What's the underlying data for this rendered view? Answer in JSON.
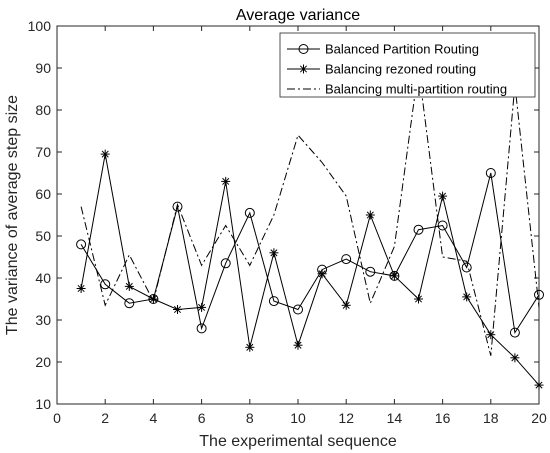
{
  "chart_data": {
    "type": "line",
    "title": "Average variance",
    "xlabel": "The experimental sequence",
    "ylabel": "The variance of average step size",
    "xlim": [
      0,
      20
    ],
    "ylim": [
      10,
      100
    ],
    "xticks": [
      0,
      2,
      4,
      6,
      8,
      10,
      12,
      14,
      16,
      18,
      20
    ],
    "yticks": [
      10,
      20,
      30,
      40,
      50,
      60,
      70,
      80,
      90,
      100
    ],
    "grid": false,
    "legend_position": "top-right",
    "x": [
      1,
      2,
      3,
      4,
      5,
      6,
      7,
      8,
      9,
      10,
      11,
      12,
      13,
      14,
      15,
      16,
      17,
      18,
      19,
      20
    ],
    "series": [
      {
        "name": "Balanced Partition Routing",
        "marker": "circle",
        "line_style": "solid",
        "values": [
          48,
          38.5,
          34,
          35,
          57,
          28,
          43.5,
          55.5,
          34.5,
          32.5,
          42,
          44.5,
          41.5,
          40.5,
          51.5,
          52.5,
          42.5,
          65,
          27,
          36
        ]
      },
      {
        "name": "Balancing rezoned routing",
        "marker": "asterisk",
        "line_style": "solid",
        "values": [
          37.5,
          69.5,
          38,
          35,
          32.5,
          33,
          63,
          23.5,
          46,
          24,
          41,
          33.5,
          55,
          40.5,
          35,
          59.5,
          35.5,
          26.5,
          21,
          14.5
        ]
      },
      {
        "name": "Balancing multi-partition routing",
        "marker": "none",
        "line_style": "dashdot",
        "values": [
          57,
          33.5,
          45.5,
          34.5,
          57.5,
          43,
          52.5,
          43,
          55,
          74,
          67.5,
          59.5,
          34,
          47.5,
          90,
          45,
          44,
          21.5,
          86,
          33
        ]
      }
    ]
  }
}
